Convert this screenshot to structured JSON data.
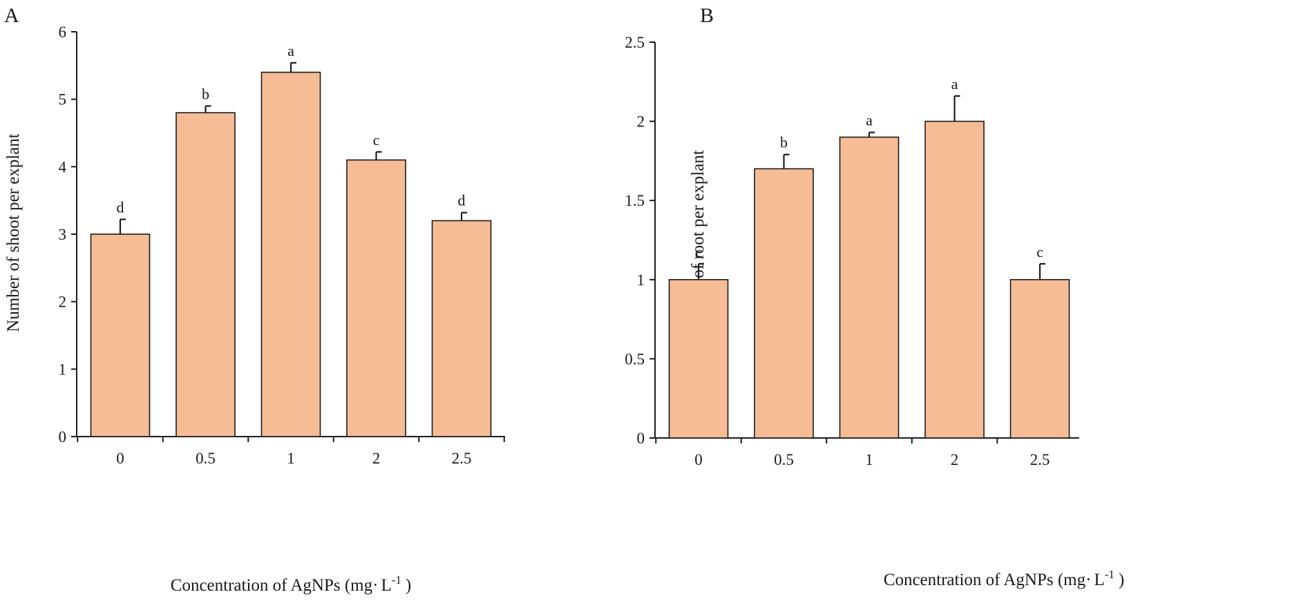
{
  "chart_data": [
    {
      "panel": "A",
      "type": "bar",
      "categories": [
        "0",
        "0.5",
        "1",
        "2",
        "2.5"
      ],
      "values": [
        3.0,
        4.8,
        5.4,
        4.1,
        3.2
      ],
      "errors": [
        0.22,
        0.1,
        0.14,
        0.12,
        0.12
      ],
      "significance": [
        "d",
        "b",
        "a",
        "c",
        "d"
      ],
      "ylabel": "Number of shoot per explant",
      "xlabel_main": "Concentration of AgNPs (mg",
      "xlabel_unit": "L",
      "xlabel_exp": "-1",
      "xlabel_close": ")",
      "ylim": [
        0,
        6
      ],
      "yticks": [
        0,
        1,
        2,
        3,
        4,
        5,
        6
      ],
      "ytick_labels": [
        "0",
        "1",
        "2",
        "3",
        "4",
        "5",
        "6"
      ],
      "bar_color": "#f5bc96"
    },
    {
      "panel": "B",
      "type": "bar",
      "categories": [
        "0",
        "0.5",
        "1",
        "2",
        "2.5"
      ],
      "values": [
        1.0,
        1.7,
        1.9,
        2.0,
        1.0
      ],
      "errors": [
        0.1,
        0.09,
        0.03,
        0.16,
        0.1
      ],
      "significance": [
        "c",
        "b",
        "a",
        "a",
        "c"
      ],
      "ylabel": "Number of root per explant",
      "xlabel_main": "Concentration of AgNPs (mg",
      "xlabel_unit": "L",
      "xlabel_exp": "-1",
      "xlabel_close": ")",
      "ylim": [
        0,
        2.5
      ],
      "yticks": [
        0,
        0.5,
        1,
        1.5,
        2,
        2.5
      ],
      "ytick_labels": [
        "0",
        "0.5",
        "1",
        "1.5",
        "2",
        "2.5"
      ],
      "bar_color": "#f5bc96"
    }
  ]
}
